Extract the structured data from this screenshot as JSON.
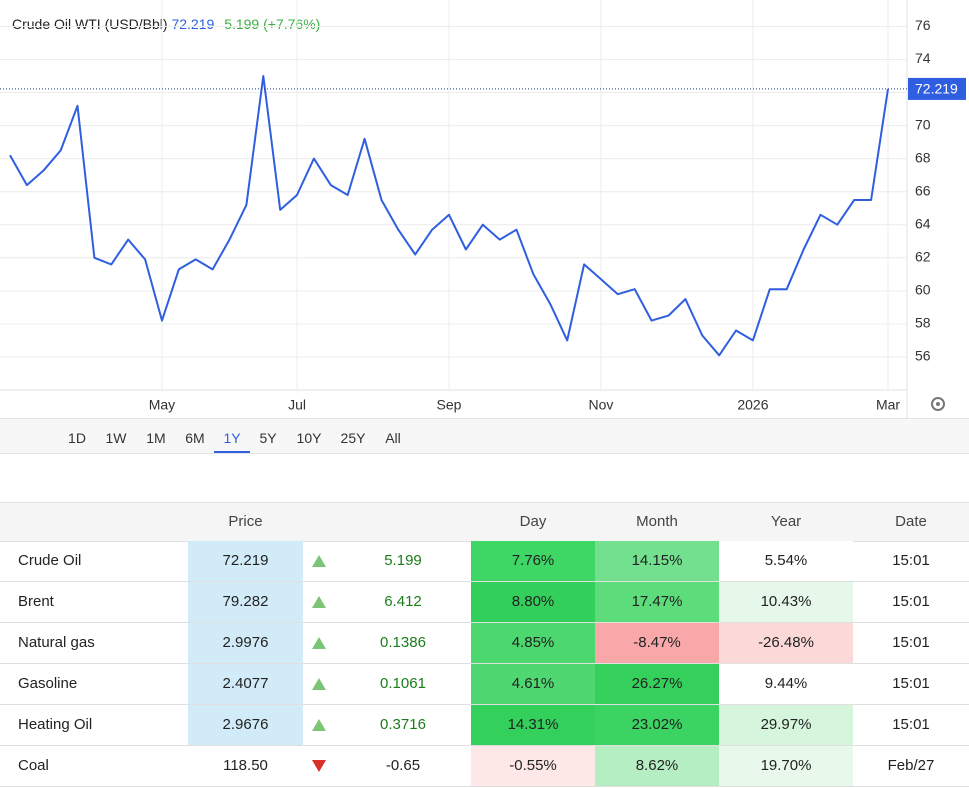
{
  "chart_data": {
    "type": "line",
    "title": "Crude Oil WTI (USD/Bbl)",
    "quote": {
      "price": "72.219",
      "change": "5.199",
      "change_pct": "(+7.76%)"
    },
    "categories": [
      null,
      null,
      null,
      null,
      null,
      null,
      null,
      null,
      null,
      "May",
      null,
      null,
      null,
      null,
      null,
      null,
      null,
      "Jul",
      null,
      null,
      null,
      null,
      null,
      null,
      null,
      null,
      "Sep",
      null,
      null,
      null,
      null,
      null,
      null,
      null,
      null,
      "Nov",
      null,
      null,
      null,
      null,
      null,
      null,
      null,
      null,
      "2026",
      null,
      null,
      null,
      null,
      null,
      null,
      null,
      "Mar"
    ],
    "series": [
      {
        "name": "Crude Oil WTI",
        "color": "#2f5fe0",
        "values": [
          68.2,
          66.4,
          67.3,
          68.5,
          71.2,
          62.0,
          61.6,
          63.1,
          61.9,
          58.2,
          61.3,
          61.9,
          61.3,
          63.1,
          65.2,
          73.0,
          64.9,
          65.8,
          68.0,
          66.4,
          65.8,
          69.2,
          65.5,
          63.7,
          62.2,
          63.7,
          64.6,
          62.5,
          64.0,
          63.1,
          63.7,
          61.0,
          59.2,
          57.0,
          61.6,
          60.7,
          59.8,
          60.1,
          58.2,
          58.5,
          59.5,
          57.3,
          56.1,
          57.6,
          57.0,
          60.1,
          60.1,
          62.5,
          64.6,
          64.0,
          65.5,
          65.5,
          72.219
        ]
      }
    ],
    "ylim": [
      54,
      77.6
    ],
    "yticks": [
      56,
      58,
      60,
      62,
      64,
      66,
      68,
      70,
      72,
      74,
      76
    ],
    "grid": true,
    "axis_side": "right"
  },
  "range_selector": {
    "options": [
      "1D",
      "1W",
      "1M",
      "6M",
      "1Y",
      "5Y",
      "10Y",
      "25Y",
      "All"
    ],
    "selected": 4
  },
  "table": {
    "header": {
      "price": "Price",
      "day": "Day",
      "month": "Month",
      "year": "Year",
      "date": "Date"
    },
    "rows": [
      {
        "name": "Crude Oil",
        "price": "72.219",
        "direction": "up",
        "change": "5.199",
        "day": "7.76%",
        "month": "14.15%",
        "year": "5.54%",
        "date": "15:01",
        "colors": {
          "price": "#d2ebf8",
          "day": "#3ed765",
          "month": "#72e08f",
          "year": "#ffffff"
        }
      },
      {
        "name": "Brent",
        "price": "79.282",
        "direction": "up",
        "change": "6.412",
        "day": "8.80%",
        "month": "17.47%",
        "year": "10.43%",
        "date": "15:01",
        "colors": {
          "price": "#d2ebf8",
          "day": "#32d05a",
          "month": "#5ddc7c",
          "year": "#e6f8ea"
        }
      },
      {
        "name": "Natural gas",
        "price": "2.9976",
        "direction": "up",
        "change": "0.1386",
        "day": "4.85%",
        "month": "-8.47%",
        "year": "-26.48%",
        "date": "15:01",
        "colors": {
          "price": "#d2ebf8",
          "day": "#4dd76f",
          "month": "#f8a8a8",
          "year": "#fdd8d8"
        }
      },
      {
        "name": "Gasoline",
        "price": "2.4077",
        "direction": "up",
        "change": "0.1061",
        "day": "4.61%",
        "month": "26.27%",
        "year": "9.44%",
        "date": "15:01",
        "colors": {
          "price": "#d2ebf8",
          "day": "#4fd771",
          "month": "#34d05b",
          "year": "#ffffff"
        }
      },
      {
        "name": "Heating Oil",
        "price": "2.9676",
        "direction": "up",
        "change": "0.3716",
        "day": "14.31%",
        "month": "23.02%",
        "year": "29.97%",
        "date": "15:01",
        "colors": {
          "price": "#d2ebf8",
          "day": "#33d05b",
          "month": "#3bd362",
          "year": "#d6f5dd"
        }
      },
      {
        "name": "Coal",
        "price": "118.50",
        "direction": "down",
        "change": "-0.65",
        "day": "-0.55%",
        "month": "8.62%",
        "year": "19.70%",
        "date": "Feb/27",
        "colors": {
          "price": "#ffffff",
          "day": "#fde7e7",
          "month": "#b6eec3",
          "year": "#e8f9ec"
        }
      }
    ]
  }
}
